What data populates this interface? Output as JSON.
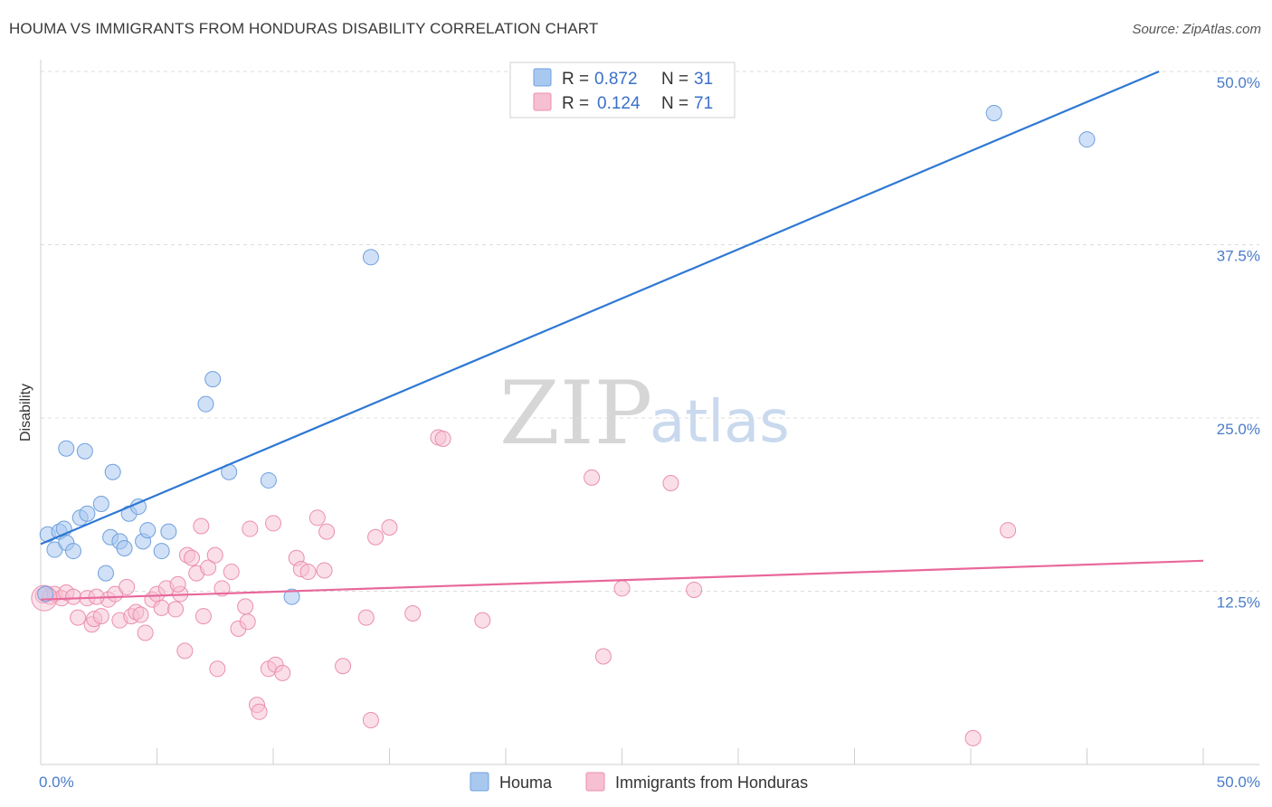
{
  "title": "HOUMA VS IMMIGRANTS FROM HONDURAS DISABILITY CORRELATION CHART",
  "source": "Source: ZipAtlas.com",
  "watermark": {
    "zip": "ZIP",
    "atlas": "atlas"
  },
  "colors": {
    "houma_fill": "#a9c8f0",
    "houma_stroke": "#6fa0de",
    "houma_line": "#2e78d4",
    "honduras_fill": "#f7bfd2",
    "honduras_stroke": "#ea8fae",
    "honduras_line": "#e8689a",
    "grid": "#dcdcdc",
    "axis_text": "#4a7cc9"
  },
  "legend": {
    "houma": {
      "r_label": "R =",
      "r_value": "0.872",
      "n_label": "N =",
      "n_value": "31"
    },
    "honduras": {
      "r_label": "R =",
      "r_value": "0.124",
      "n_label": "N =",
      "n_value": "71"
    }
  },
  "bottom_legend": {
    "houma": "Houma",
    "honduras": "Immigrants from Honduras"
  },
  "chart_data": {
    "type": "scatter",
    "title": "HOUMA VS IMMIGRANTS FROM HONDURAS DISABILITY CORRELATION CHART",
    "xlabel": "",
    "ylabel": "Disability",
    "xlim": [
      0,
      50
    ],
    "ylim": [
      0,
      50
    ],
    "x_tick_labels": [
      "0.0%",
      "50.0%"
    ],
    "y_ticks": [
      12.5,
      25.0,
      37.5,
      50.0
    ],
    "y_tick_labels": [
      "12.5%",
      "25.0%",
      "37.5%",
      "50.0%"
    ],
    "grid": true,
    "series": [
      {
        "name": "Houma",
        "trend": {
          "x0": 0,
          "y0": 15.9,
          "x1": 48.1,
          "y1": 50.0
        },
        "points": [
          [
            0.3,
            16.6
          ],
          [
            0.6,
            15.5
          ],
          [
            0.8,
            16.8
          ],
          [
            1.0,
            17.0
          ],
          [
            1.1,
            16.0
          ],
          [
            1.4,
            15.4
          ],
          [
            1.7,
            17.8
          ],
          [
            2.0,
            18.1
          ],
          [
            1.1,
            22.8
          ],
          [
            1.9,
            22.6
          ],
          [
            2.6,
            18.8
          ],
          [
            3.1,
            21.1
          ],
          [
            3.0,
            16.4
          ],
          [
            3.4,
            16.1
          ],
          [
            3.6,
            15.6
          ],
          [
            3.8,
            18.1
          ],
          [
            4.2,
            18.6
          ],
          [
            4.4,
            16.1
          ],
          [
            4.6,
            16.9
          ],
          [
            5.2,
            15.4
          ],
          [
            5.5,
            16.8
          ],
          [
            2.8,
            13.8
          ],
          [
            7.1,
            26.0
          ],
          [
            7.4,
            27.8
          ],
          [
            8.1,
            21.1
          ],
          [
            9.8,
            20.5
          ],
          [
            10.8,
            12.1
          ],
          [
            14.2,
            36.6
          ],
          [
            41.0,
            47.0
          ],
          [
            45.0,
            45.1
          ],
          [
            0.2,
            12.3
          ]
        ]
      },
      {
        "name": "Immigrants from Honduras",
        "trend": {
          "x0": 0,
          "y0": 11.9,
          "x1": 50,
          "y1": 14.7
        },
        "points": [
          [
            0.1,
            12.2
          ],
          [
            0.4,
            12.1
          ],
          [
            0.6,
            12.3
          ],
          [
            0.9,
            12.0
          ],
          [
            1.1,
            12.4
          ],
          [
            1.4,
            12.1
          ],
          [
            1.6,
            10.6
          ],
          [
            2.0,
            12.0
          ],
          [
            2.2,
            10.1
          ],
          [
            2.3,
            10.5
          ],
          [
            2.6,
            10.7
          ],
          [
            2.9,
            11.9
          ],
          [
            3.2,
            12.3
          ],
          [
            3.4,
            10.4
          ],
          [
            3.7,
            12.8
          ],
          [
            3.9,
            10.7
          ],
          [
            4.1,
            11.0
          ],
          [
            4.3,
            10.8
          ],
          [
            4.5,
            9.5
          ],
          [
            4.8,
            11.9
          ],
          [
            5.0,
            12.3
          ],
          [
            5.2,
            11.3
          ],
          [
            5.4,
            12.7
          ],
          [
            5.8,
            11.2
          ],
          [
            6.0,
            12.3
          ],
          [
            6.2,
            8.2
          ],
          [
            6.3,
            15.1
          ],
          [
            6.5,
            14.9
          ],
          [
            6.7,
            13.8
          ],
          [
            6.9,
            17.2
          ],
          [
            7.0,
            10.7
          ],
          [
            7.2,
            14.2
          ],
          [
            7.5,
            15.1
          ],
          [
            7.6,
            6.9
          ],
          [
            7.8,
            12.7
          ],
          [
            8.2,
            13.9
          ],
          [
            8.5,
            9.8
          ],
          [
            8.8,
            11.4
          ],
          [
            8.9,
            10.3
          ],
          [
            9.0,
            17.0
          ],
          [
            9.3,
            4.3
          ],
          [
            9.4,
            3.8
          ],
          [
            9.8,
            6.9
          ],
          [
            10.0,
            17.4
          ],
          [
            10.1,
            7.2
          ],
          [
            10.4,
            6.6
          ],
          [
            11.0,
            14.9
          ],
          [
            11.2,
            14.1
          ],
          [
            11.5,
            13.9
          ],
          [
            11.9,
            17.8
          ],
          [
            12.2,
            14.0
          ],
          [
            12.3,
            16.8
          ],
          [
            13.0,
            7.1
          ],
          [
            14.0,
            10.6
          ],
          [
            14.2,
            3.2
          ],
          [
            14.4,
            16.4
          ],
          [
            15.0,
            17.1
          ],
          [
            16.0,
            10.9
          ],
          [
            17.1,
            23.6
          ],
          [
            17.3,
            23.5
          ],
          [
            19.0,
            10.4
          ],
          [
            23.7,
            20.7
          ],
          [
            24.2,
            7.8
          ],
          [
            25.0,
            12.7
          ],
          [
            27.1,
            20.3
          ],
          [
            28.1,
            12.6
          ],
          [
            40.1,
            1.9
          ],
          [
            41.6,
            16.9
          ],
          [
            2.4,
            12.1
          ],
          [
            5.9,
            13.0
          ],
          [
            0.15,
            12.0
          ]
        ]
      }
    ]
  }
}
